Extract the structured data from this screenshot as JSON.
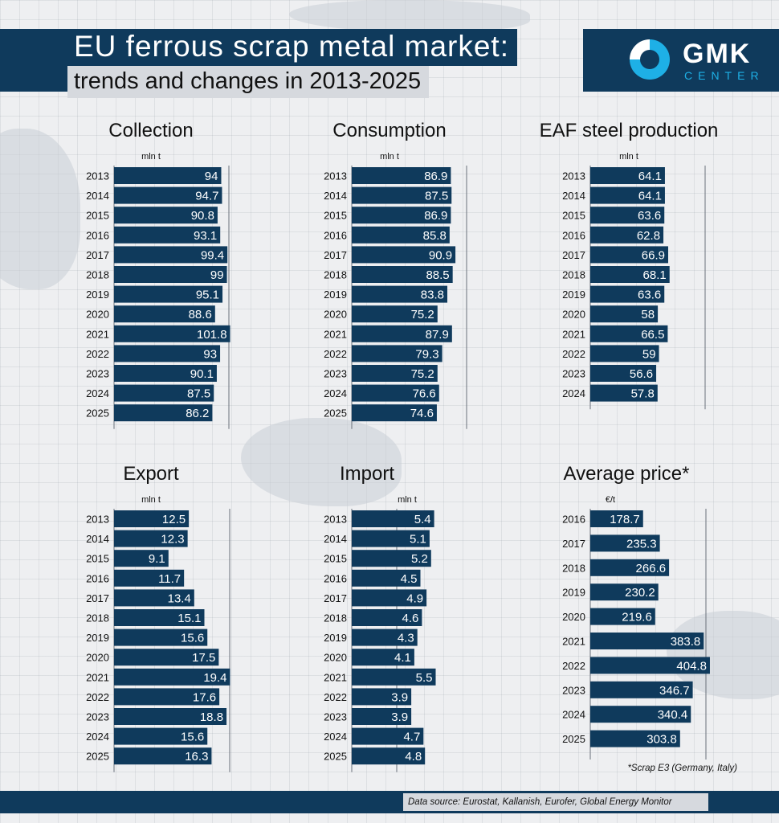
{
  "header": {
    "title_line1": "EU ferrous scrap metal market:",
    "title_line2": "trends and changes in 2013-2025"
  },
  "logo": {
    "name": "GMK",
    "subtitle": "CENTER"
  },
  "colors": {
    "bar": "#0f3a5c",
    "accent": "#1eb0e6",
    "label_bg": "#d6d9de"
  },
  "footnote": "*Scrap E3 (Germany, Italy)",
  "footer": {
    "source": "Data source: Eurostat, Kallanish, Eurofer, Global Energy Monitor"
  },
  "chart_data": [
    {
      "type": "bar",
      "orientation": "horizontal",
      "title": "Collection",
      "unit": "mln t",
      "categories": [
        "2013",
        "2014",
        "2015",
        "2016",
        "2017",
        "2018",
        "2019",
        "2020",
        "2021",
        "2022",
        "2023",
        "2024",
        "2025"
      ],
      "values": [
        94,
        94.7,
        90.8,
        93.1,
        99.4,
        99,
        95.1,
        88.6,
        101.8,
        93,
        90.1,
        87.5,
        86.2
      ],
      "value_labels": [
        "94",
        "94.7",
        "90.8",
        "93.1",
        "99.4",
        "99",
        "95.1",
        "88.6",
        "101.8",
        "93",
        "90.1",
        "87.5",
        "86.2"
      ],
      "xlim": [
        0,
        100
      ]
    },
    {
      "type": "bar",
      "orientation": "horizontal",
      "title": "Consumption",
      "unit": "mln t",
      "categories": [
        "2013",
        "2014",
        "2015",
        "2016",
        "2017",
        "2018",
        "2019",
        "2020",
        "2021",
        "2022",
        "2023",
        "2024",
        "2025"
      ],
      "values": [
        86.9,
        87.5,
        86.9,
        85.8,
        90.9,
        88.5,
        83.8,
        75.2,
        87.9,
        79.3,
        75.2,
        76.6,
        74.6
      ],
      "value_labels": [
        "86.9",
        "87.5",
        "86.9",
        "85.8",
        "90.9",
        "88.5",
        "83.8",
        "75.2",
        "87.9",
        "79.3",
        "75.2",
        "76.6",
        "74.6"
      ],
      "xlim": [
        0,
        100
      ]
    },
    {
      "type": "bar",
      "orientation": "horizontal",
      "title": "EAF steel production",
      "unit": "mln t",
      "categories": [
        "2013",
        "2014",
        "2015",
        "2016",
        "2017",
        "2018",
        "2019",
        "2020",
        "2021",
        "2022",
        "2023",
        "2024"
      ],
      "values": [
        64.1,
        64.1,
        63.6,
        62.8,
        66.9,
        68.1,
        63.6,
        58,
        66.5,
        59,
        56.6,
        57.8
      ],
      "value_labels": [
        "64.1",
        "64.1",
        "63.6",
        "62.8",
        "66.9",
        "68.1",
        "63.6",
        "58",
        "66.5",
        "59",
        "56.6",
        "57.8"
      ],
      "xlim": [
        0,
        100
      ]
    },
    {
      "type": "bar",
      "orientation": "horizontal",
      "title": "Export",
      "unit": "mln t",
      "categories": [
        "2013",
        "2014",
        "2015",
        "2016",
        "2017",
        "2018",
        "2019",
        "2020",
        "2021",
        "2022",
        "2023",
        "2024",
        "2025"
      ],
      "values": [
        12.5,
        12.3,
        9.1,
        11.7,
        13.4,
        15.1,
        15.6,
        17.5,
        19.4,
        17.6,
        18.8,
        15.6,
        16.3
      ],
      "value_labels": [
        "12.5",
        "12.3",
        "9.1",
        "11.7",
        "13.4",
        "15.1",
        "15.6",
        "17.5",
        "19.4",
        "17.6",
        "18.8",
        "15.6",
        "16.3"
      ],
      "xlim": [
        0,
        20
      ]
    },
    {
      "type": "bar",
      "orientation": "horizontal",
      "title": "Import",
      "unit": "mln t",
      "categories": [
        "2013",
        "2014",
        "2015",
        "2016",
        "2017",
        "2018",
        "2019",
        "2020",
        "2021",
        "2022",
        "2023",
        "2024",
        "2025"
      ],
      "values": [
        5.4,
        5.1,
        5.2,
        4.5,
        4.9,
        4.6,
        4.3,
        4.1,
        5.5,
        3.9,
        3.9,
        4.7,
        4.8
      ],
      "value_labels": [
        "5.4",
        "5.1",
        "5.2",
        "4.5",
        "4.9",
        "4.6",
        "4.3",
        "4.1",
        "5.5",
        "3.9",
        "3.9",
        "4.7",
        "4.8"
      ],
      "xlim": [
        0,
        5
      ]
    },
    {
      "type": "bar",
      "orientation": "horizontal",
      "title": "Average price*",
      "unit": "€/t",
      "categories": [
        "2016",
        "2017",
        "2018",
        "2019",
        "2020",
        "2021",
        "2022",
        "2023",
        "2024",
        "2025"
      ],
      "values": [
        178.7,
        235.3,
        266.6,
        230.2,
        219.6,
        383.8,
        404.8,
        346.7,
        340.4,
        303.8
      ],
      "value_labels": [
        "178.7",
        "235.3",
        "266.6",
        "230.2",
        "219.6",
        "383.8",
        "404.8",
        "346.7",
        "340.4",
        "303.8"
      ],
      "xlim": [
        0,
        400
      ]
    }
  ]
}
